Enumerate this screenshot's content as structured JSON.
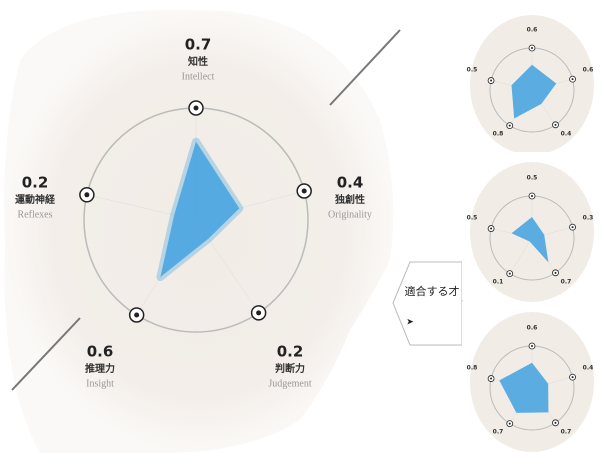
{
  "chart_data": [
    {
      "type": "radar",
      "categories": [
        "知性",
        "独創性",
        "判断力",
        "推理力",
        "運動神経"
      ],
      "categories_en": [
        "Intellect",
        "Originality",
        "Judgement",
        "Insight",
        "Reflexes"
      ],
      "values": [
        0.7,
        0.4,
        0.2,
        0.6,
        0.2
      ],
      "color": "#4aa6e0",
      "rlim": [
        0,
        1
      ]
    },
    {
      "type": "radar",
      "values": [
        0.6,
        0.6,
        0.4,
        0.8,
        0.5
      ],
      "color": "#4aa6e0",
      "rlim": [
        0,
        1
      ]
    },
    {
      "type": "radar",
      "values": [
        0.5,
        0.3,
        0.7,
        0.1,
        0.5
      ],
      "color": "#4aa6e0",
      "rlim": [
        0,
        1
      ]
    },
    {
      "type": "radar",
      "values": [
        0.6,
        0.4,
        0.7,
        0.7,
        0.8
      ],
      "color": "#4aa6e0",
      "rlim": [
        0,
        1
      ]
    }
  ],
  "button": {
    "label": "適合する才",
    "arrow": "➤"
  }
}
